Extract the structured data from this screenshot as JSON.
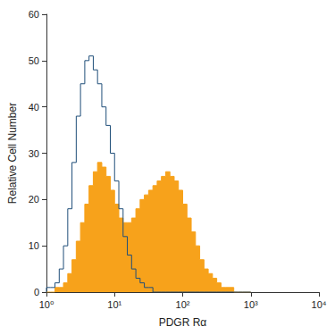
{
  "chart_data": {
    "type": "histogram",
    "x_label": "PDGR Rα",
    "y_label": "Relative Cell Number",
    "log": "x",
    "grid": false,
    "xlim": [
      1,
      10000
    ],
    "xticks": [
      {
        "value": 1,
        "label": "10⁰"
      },
      {
        "value": 10,
        "label": "10¹"
      },
      {
        "value": 100,
        "label": "10²"
      },
      {
        "value": 1000,
        "label": "10³"
      },
      {
        "value": 10000,
        "label": "10⁴"
      }
    ],
    "ylim": [
      0,
      60
    ],
    "yticks": [
      0,
      10,
      20,
      30,
      40,
      50,
      60
    ],
    "bins": [
      1,
      1.155,
      1.334,
      1.54,
      1.778,
      2.054,
      2.371,
      2.738,
      3.162,
      3.652,
      4.217,
      4.87,
      5.623,
      6.494,
      7.499,
      8.66,
      10,
      11.55,
      13.34,
      15.4,
      17.78,
      20.54,
      23.71,
      27.38,
      31.62,
      36.52,
      42.17,
      48.7,
      56.23,
      64.94,
      74.99,
      86.6,
      100,
      115.5,
      133.4,
      154,
      177.8,
      205.4,
      237.1,
      273.8,
      316.2,
      365.2,
      421.7,
      487,
      562.3,
      649.4,
      749.9,
      866,
      1000
    ],
    "series": [
      {
        "type": "area",
        "color": "#f7a21b",
        "values": [
          0,
          0,
          1,
          1,
          2,
          4,
          7,
          11,
          15,
          19,
          23,
          26,
          28,
          27,
          25,
          22,
          19,
          16,
          15,
          15,
          16,
          18,
          20,
          21,
          22,
          23,
          24,
          25,
          26,
          25,
          24,
          22,
          19,
          16,
          13,
          10,
          7,
          5,
          4,
          3,
          2,
          1,
          1,
          1,
          0,
          0,
          0,
          0
        ]
      },
      {
        "type": "line",
        "color": "#1f4e79",
        "values": [
          1,
          1,
          2,
          5,
          10,
          18,
          28,
          38,
          45,
          50,
          51,
          48,
          45,
          40,
          36,
          30,
          24,
          18,
          12,
          8,
          5,
          3,
          2,
          1,
          1,
          0,
          0,
          0,
          0,
          0,
          0,
          0,
          0,
          0,
          0,
          0,
          0,
          0,
          0,
          0,
          0,
          0,
          0,
          0,
          0,
          0,
          0,
          0
        ]
      }
    ]
  }
}
